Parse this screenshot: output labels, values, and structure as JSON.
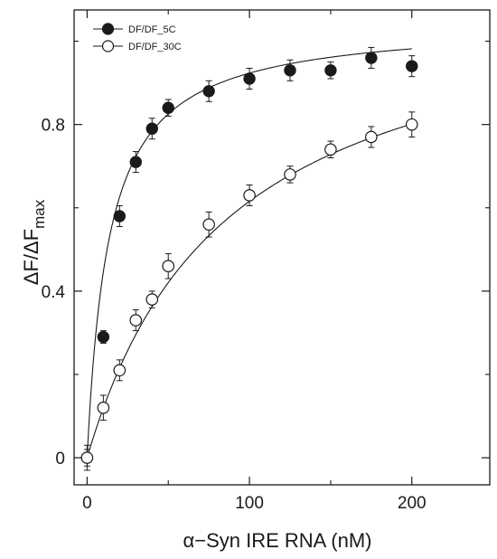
{
  "chart_data": {
    "type": "scatter",
    "title": "",
    "xlabel": "α−Syn IRE RNA (nM)",
    "ylabel": {
      "main": "ΔF/ΔF",
      "sub": "max"
    },
    "xlim": [
      -8,
      248
    ],
    "ylim": [
      -0.065,
      1.075
    ],
    "x_ticks": [
      0,
      100,
      200
    ],
    "x_tick_labels": [
      "0",
      "100",
      "200"
    ],
    "x_minor_ticks": [
      50,
      150
    ],
    "y_ticks": [
      0,
      0.4,
      0.8
    ],
    "y_tick_labels": [
      "0",
      "0.4",
      "0.8"
    ],
    "y_minor_ticks": [
      0.2,
      0.6,
      1.0
    ],
    "grid": false,
    "legend_position": "top-left",
    "series": [
      {
        "name": "DF/DF_5C",
        "marker": "filled-circle",
        "x": [
          0,
          10,
          20,
          30,
          40,
          50,
          75,
          100,
          125,
          150,
          175,
          200
        ],
        "y": [
          0.0,
          0.29,
          0.58,
          0.71,
          0.79,
          0.84,
          0.88,
          0.91,
          0.93,
          0.93,
          0.96,
          0.94
        ],
        "error": [
          0.02,
          0.015,
          0.025,
          0.025,
          0.025,
          0.02,
          0.025,
          0.025,
          0.025,
          0.02,
          0.025,
          0.025
        ],
        "fit_curve": {
          "model": "hyperbolic",
          "bmax": 1.048,
          "kd": 13.5
        }
      },
      {
        "name": "DF/DF_30C",
        "marker": "open-circle",
        "x": [
          0,
          10,
          20,
          30,
          40,
          50,
          75,
          100,
          125,
          150,
          175,
          200
        ],
        "y": [
          0.0,
          0.12,
          0.21,
          0.33,
          0.38,
          0.46,
          0.56,
          0.63,
          0.68,
          0.74,
          0.77,
          0.8
        ],
        "error": [
          0.03,
          0.03,
          0.025,
          0.025,
          0.02,
          0.03,
          0.03,
          0.025,
          0.02,
          0.02,
          0.025,
          0.03
        ],
        "fit_curve": {
          "model": "hyperbolic",
          "bmax": 1.148,
          "kd": 86.5
        }
      }
    ]
  },
  "colors": {
    "ink": "#1a1a1a",
    "background": "#ffffff",
    "open_marker_fill": "#ffffff"
  }
}
